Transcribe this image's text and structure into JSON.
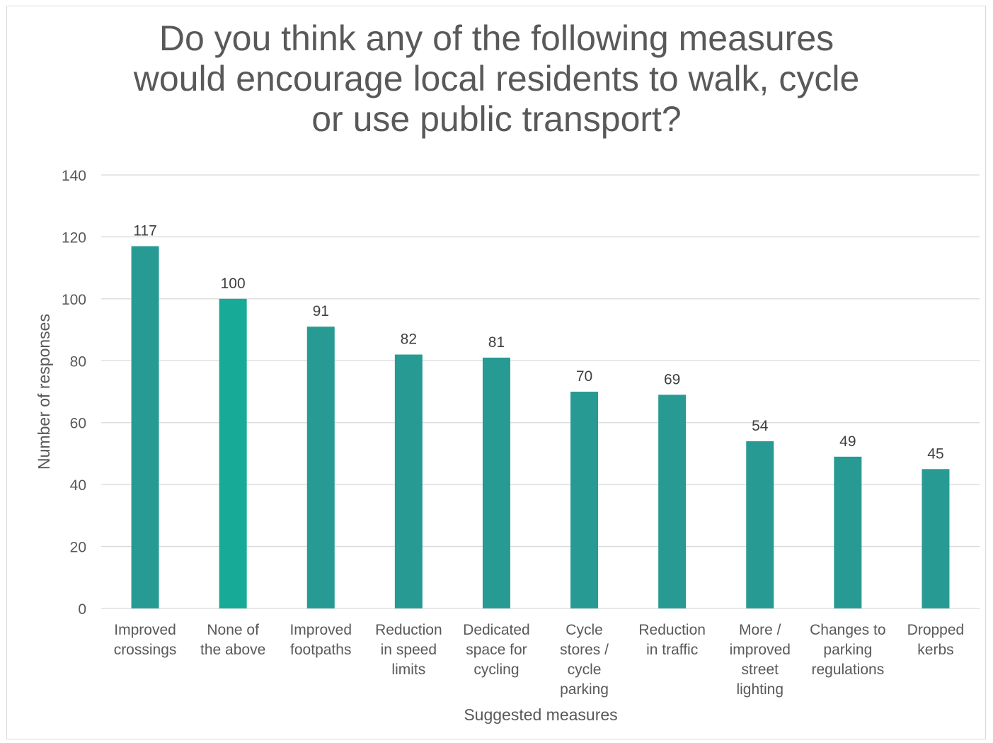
{
  "chart_data": {
    "type": "bar",
    "title": "Do you think any of the following measures\nwould encourage local residents to walk, cycle\nor use public transport?",
    "xlabel": "Suggested measures",
    "ylabel": "Number of responses",
    "ylim": [
      0,
      140
    ],
    "yticks": [
      "0",
      "20",
      "40",
      "60",
      "80",
      "100",
      "120",
      "140"
    ],
    "grid": true,
    "legend": "none",
    "categories": [
      "Improved crossings",
      "None of the above",
      "Improved footpaths",
      "Reduction in speed limits",
      "Dedicated space for cycling",
      "Cycle stores / cycle parking",
      "Reduction in traffic",
      "More / improved street lighting",
      "Changes to parking regulations",
      "Dropped kerbs"
    ],
    "category_label_lines": [
      [
        "Improved",
        "crossings"
      ],
      [
        "None of",
        "the above"
      ],
      [
        "Improved",
        "footpaths"
      ],
      [
        "Reduction",
        "in speed",
        "limits"
      ],
      [
        "Dedicated",
        "space for",
        "cycling"
      ],
      [
        "Cycle",
        "stores /",
        "cycle",
        "parking"
      ],
      [
        "Reduction",
        "in traffic"
      ],
      [
        "More /",
        "improved",
        "street",
        "lighting"
      ],
      [
        "Changes to",
        "parking",
        "regulations"
      ],
      [
        "Dropped",
        "kerbs"
      ]
    ],
    "values": [
      117,
      100,
      91,
      82,
      81,
      70,
      69,
      54,
      49,
      45
    ],
    "data_labels": [
      "117",
      "100",
      "91",
      "82",
      "81",
      "70",
      "69",
      "54",
      "49",
      "45"
    ],
    "colors": {
      "bar": "#279B93",
      "bar_highlight": "#17AA96",
      "grid": "#d9d9d9",
      "axis_text": "#595959",
      "label_text": "#404040"
    },
    "highlight_index": 1
  }
}
